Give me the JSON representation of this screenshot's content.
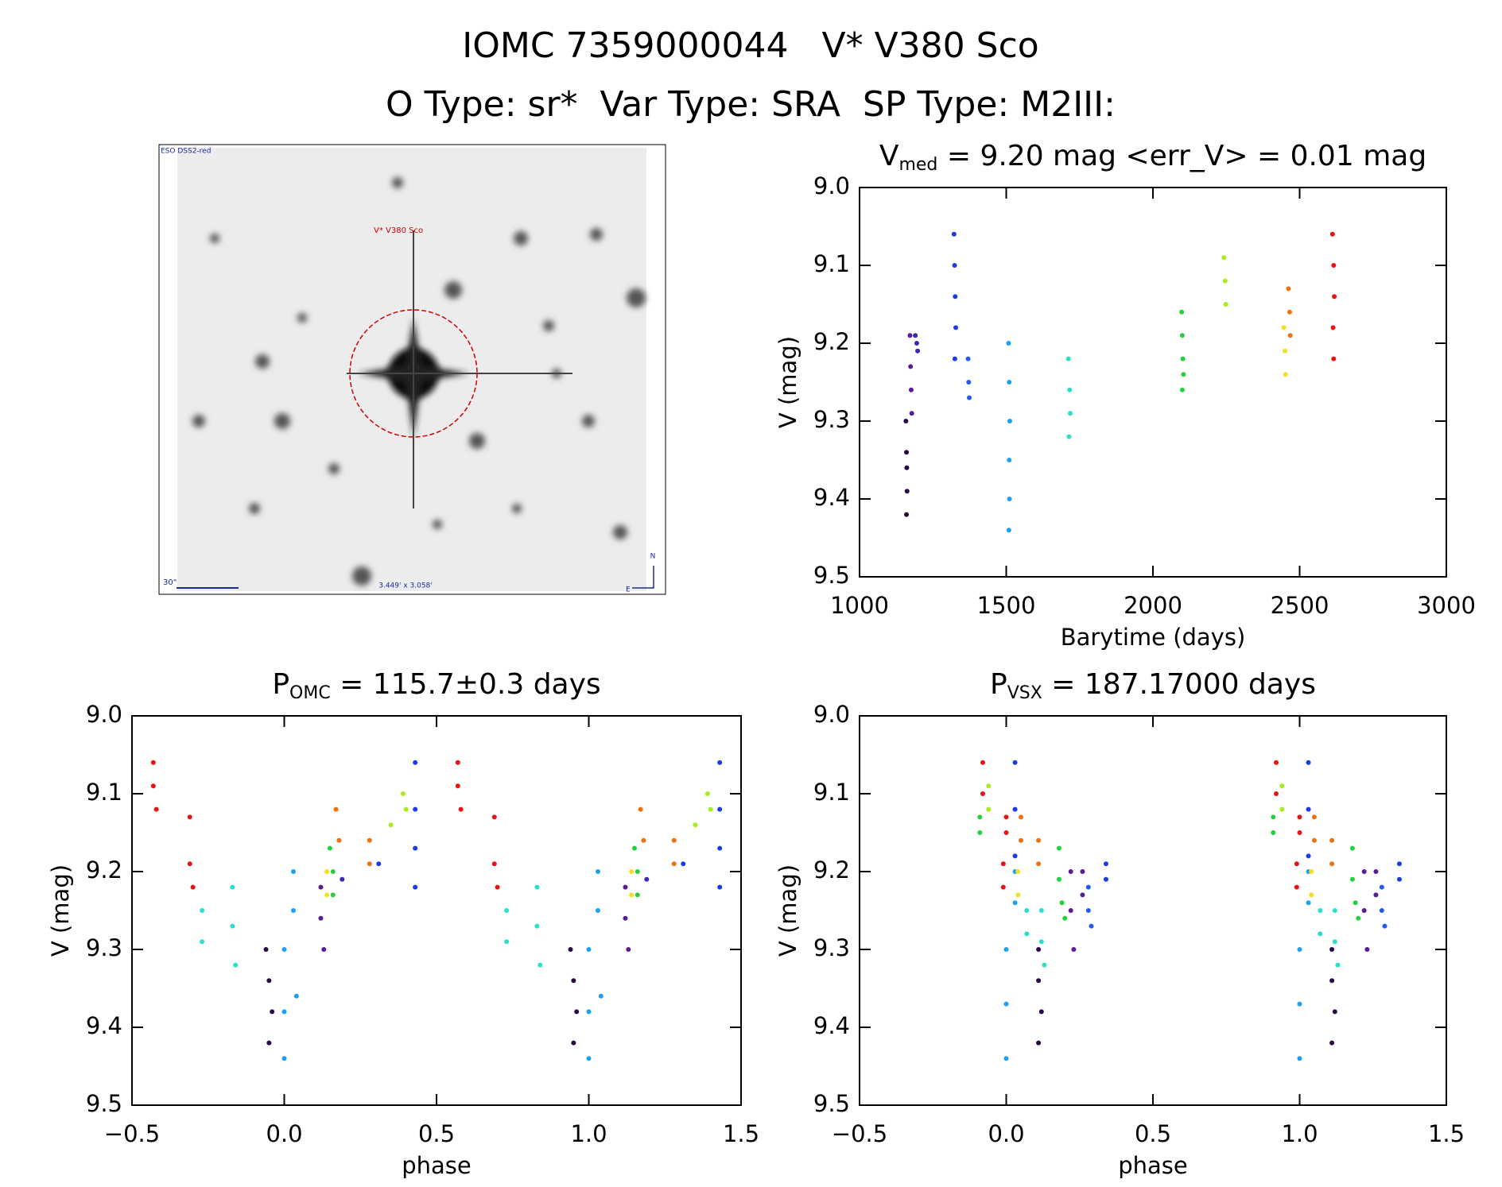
{
  "header": {
    "title": "IOMC 7359000044   V* V380 Sco",
    "subtitle": "O Type: sr*  Var Type: SRA  SP Type: M2III:"
  },
  "image": {
    "survey": "ESO DSS2-red",
    "target": "V* V380 Sco",
    "scale": "30\"",
    "fov": "3.449' x 3.058'",
    "north": "N",
    "east": "E"
  },
  "chart_data": [
    {
      "type": "scatter",
      "title": [
        "V",
        "med",
        " = 9.20 mag <err_V> = 0.01 mag"
      ],
      "xlabel": "Barytime (days)",
      "ylabel": "V (mag)",
      "xlim": [
        1000,
        3000
      ],
      "xticks": [
        1000,
        1500,
        2000,
        2500,
        3000
      ],
      "ylim": [
        9.5,
        9.0
      ],
      "yticks": [
        {
          "value": 9.0,
          "label": "9.0"
        },
        9.1,
        9.2,
        9.3,
        9.4,
        9.5
      ],
      "series": [
        {
          "color": "#2a0845",
          "x": [
            1158,
            1160,
            1161,
            1162,
            1160
          ],
          "values": [
            9.3,
            9.34,
            9.36,
            9.39,
            9.42
          ]
        },
        {
          "color": "#5b1a9a",
          "x": [
            1172,
            1174,
            1176,
            1178
          ],
          "values": [
            9.19,
            9.23,
            9.26,
            9.29
          ]
        },
        {
          "color": "#3c28b4",
          "x": [
            1190,
            1195,
            1198
          ],
          "values": [
            9.19,
            9.2,
            9.21
          ]
        },
        {
          "color": "#1a3ce6",
          "x": [
            1322,
            1324,
            1326,
            1328,
            1325
          ],
          "values": [
            9.06,
            9.1,
            9.14,
            9.18,
            9.22
          ]
        },
        {
          "color": "#2458f0",
          "x": [
            1370,
            1372,
            1374
          ],
          "values": [
            9.22,
            9.25,
            9.27
          ]
        },
        {
          "color": "#1ea0f0",
          "x": [
            1508,
            1510,
            1512,
            1510,
            1511,
            1509
          ],
          "values": [
            9.2,
            9.25,
            9.3,
            9.35,
            9.4,
            9.44
          ]
        },
        {
          "color": "#2ae0c8",
          "x": [
            1712,
            1716,
            1718,
            1714
          ],
          "values": [
            9.22,
            9.26,
            9.29,
            9.32
          ]
        },
        {
          "color": "#22d23c",
          "x": [
            2098,
            2100,
            2102,
            2104,
            2100
          ],
          "values": [
            9.16,
            9.19,
            9.22,
            9.24,
            9.26
          ]
        },
        {
          "color": "#a8ee1c",
          "x": [
            2242,
            2246,
            2248
          ],
          "values": [
            9.09,
            9.12,
            9.15
          ]
        },
        {
          "color": "#f4e01c",
          "x": [
            2446,
            2450,
            2452
          ],
          "values": [
            9.18,
            9.21,
            9.24
          ]
        },
        {
          "color": "#f07014",
          "x": [
            2462,
            2466,
            2468
          ],
          "values": [
            9.13,
            9.16,
            9.19
          ]
        },
        {
          "color": "#e81414",
          "x": [
            2612,
            2616,
            2618,
            2614,
            2616
          ],
          "values": [
            9.06,
            9.1,
            9.14,
            9.18,
            9.22
          ]
        }
      ]
    },
    {
      "type": "scatter",
      "title": [
        "P",
        "OMC",
        " = 115.7±0.3 days"
      ],
      "xlabel": "phase",
      "ylabel": "V (mag)",
      "xlim": [
        -0.5,
        1.5
      ],
      "xticks": [
        {
          "value": -0.5,
          "label": "−0.5"
        },
        {
          "value": 0.0,
          "label": "0.0"
        },
        0.5,
        {
          "value": 1.0,
          "label": "1.0"
        },
        1.5
      ],
      "ylim": [
        9.5,
        9.0
      ],
      "yticks": [
        {
          "value": 9.0,
          "label": "9.0"
        },
        9.1,
        9.2,
        9.3,
        9.4,
        9.5
      ],
      "series": [
        {
          "color": "#e81414",
          "x": [
            -0.43,
            -0.43,
            -0.42,
            -0.31,
            -0.31,
            -0.3,
            0.57,
            0.57,
            0.58,
            0.69,
            0.69,
            0.7
          ],
          "values": [
            9.06,
            9.09,
            9.12,
            9.13,
            9.19,
            9.22,
            9.06,
            9.09,
            9.12,
            9.13,
            9.19,
            9.22
          ]
        },
        {
          "color": "#2ae0c8",
          "x": [
            -0.27,
            -0.27,
            -0.17,
            -0.17,
            -0.16,
            0.73,
            0.73,
            0.83,
            0.83,
            0.84
          ],
          "values": [
            9.25,
            9.29,
            9.22,
            9.27,
            9.32,
            9.25,
            9.29,
            9.22,
            9.27,
            9.32
          ]
        },
        {
          "color": "#2a0845",
          "x": [
            -0.06,
            -0.05,
            -0.04,
            -0.05,
            0.94,
            0.95,
            0.96,
            0.95
          ],
          "values": [
            9.3,
            9.34,
            9.38,
            9.42,
            9.3,
            9.34,
            9.38,
            9.42
          ]
        },
        {
          "color": "#1ea0f0",
          "x": [
            0.0,
            0.0,
            0.0,
            0.03,
            0.03,
            0.04,
            1.0,
            1.0,
            1.0,
            1.03,
            1.03,
            1.04
          ],
          "values": [
            9.3,
            9.38,
            9.44,
            9.2,
            9.25,
            9.36,
            9.3,
            9.38,
            9.44,
            9.2,
            9.25,
            9.36
          ]
        },
        {
          "color": "#5b1a9a",
          "x": [
            0.12,
            0.12,
            0.13,
            1.12,
            1.12,
            1.13
          ],
          "values": [
            9.22,
            9.26,
            9.3,
            9.22,
            9.26,
            9.3
          ]
        },
        {
          "color": "#22d23c",
          "x": [
            0.15,
            0.16,
            0.16,
            1.15,
            1.16,
            1.16
          ],
          "values": [
            9.17,
            9.2,
            9.23,
            9.17,
            9.2,
            9.23
          ]
        },
        {
          "color": "#f4e01c",
          "x": [
            0.14,
            0.14,
            1.14,
            1.14
          ],
          "values": [
            9.2,
            9.23,
            9.2,
            9.23
          ]
        },
        {
          "color": "#f07014",
          "x": [
            0.17,
            0.18,
            0.28,
            0.28,
            1.17,
            1.18,
            1.28,
            1.28
          ],
          "values": [
            9.12,
            9.16,
            9.16,
            9.19,
            9.12,
            9.16,
            9.16,
            9.19
          ]
        },
        {
          "color": "#a8ee1c",
          "x": [
            0.35,
            0.39,
            0.4,
            1.35,
            1.39,
            1.4
          ],
          "values": [
            9.14,
            9.1,
            9.12,
            9.14,
            9.1,
            9.12
          ]
        },
        {
          "color": "#1a3ce6",
          "x": [
            0.31,
            0.43,
            0.43,
            0.43,
            0.43,
            1.31,
            1.43,
            1.43,
            1.43,
            1.43
          ],
          "values": [
            9.19,
            9.06,
            9.12,
            9.17,
            9.22,
            9.19,
            9.06,
            9.12,
            9.17,
            9.22
          ]
        },
        {
          "color": "#3c28b4",
          "x": [
            0.19,
            1.19
          ],
          "values": [
            9.21,
            9.21
          ]
        }
      ]
    },
    {
      "type": "scatter",
      "title": [
        "P",
        "VSX",
        " = 187.17000 days"
      ],
      "xlabel": "phase",
      "ylabel": "V (mag)",
      "xlim": [
        -0.5,
        1.5
      ],
      "xticks": [
        {
          "value": -0.5,
          "label": "−0.5"
        },
        {
          "value": 0.0,
          "label": "0.0"
        },
        0.5,
        {
          "value": 1.0,
          "label": "1.0"
        },
        1.5
      ],
      "ylim": [
        9.5,
        9.0
      ],
      "yticks": [
        {
          "value": 9.0,
          "label": "9.0"
        },
        9.1,
        9.2,
        9.3,
        9.4,
        9.5
      ],
      "series": [
        {
          "color": "#e81414",
          "x": [
            -0.08,
            -0.08,
            0.0,
            0.0,
            -0.01,
            -0.01,
            0.92,
            0.92,
            1.0,
            1.0,
            0.99,
            0.99
          ],
          "values": [
            9.06,
            9.1,
            9.13,
            9.15,
            9.19,
            9.22,
            9.06,
            9.1,
            9.13,
            9.15,
            9.19,
            9.22
          ]
        },
        {
          "color": "#a8ee1c",
          "x": [
            -0.06,
            -0.06,
            0.94,
            0.94
          ],
          "values": [
            9.09,
            9.12,
            9.09,
            9.12
          ]
        },
        {
          "color": "#22d23c",
          "x": [
            -0.09,
            -0.09,
            0.18,
            0.18,
            0.19,
            0.2,
            0.91,
            0.91,
            1.18,
            1.18,
            1.19,
            1.2
          ],
          "values": [
            9.13,
            9.15,
            9.17,
            9.21,
            9.24,
            9.26,
            9.13,
            9.15,
            9.17,
            9.21,
            9.24,
            9.26
          ]
        },
        {
          "color": "#1a3ce6",
          "x": [
            0.03,
            0.03,
            0.03,
            0.34,
            0.34,
            1.03,
            1.03,
            1.03,
            1.34,
            1.34
          ],
          "values": [
            9.06,
            9.12,
            9.18,
            9.19,
            9.21,
            9.06,
            9.12,
            9.18,
            9.19,
            9.21
          ]
        },
        {
          "color": "#1ea0f0",
          "x": [
            0.0,
            0.0,
            0.0,
            0.03,
            0.03,
            1.0,
            1.0,
            1.0,
            1.03,
            1.03
          ],
          "values": [
            9.3,
            9.37,
            9.44,
            9.2,
            9.24,
            9.3,
            9.37,
            9.44,
            9.2,
            9.24
          ]
        },
        {
          "color": "#f4e01c",
          "x": [
            0.04,
            0.04,
            1.04,
            1.04
          ],
          "values": [
            9.2,
            9.23,
            9.2,
            9.23
          ]
        },
        {
          "color": "#f07014",
          "x": [
            0.05,
            0.05,
            0.11,
            0.11,
            1.05,
            1.05,
            1.11,
            1.11
          ],
          "values": [
            9.13,
            9.16,
            9.16,
            9.19,
            9.13,
            9.16,
            9.16,
            9.19
          ]
        },
        {
          "color": "#2ae0c8",
          "x": [
            0.07,
            0.07,
            0.12,
            0.12,
            0.13,
            1.07,
            1.07,
            1.12,
            1.12,
            1.13
          ],
          "values": [
            9.25,
            9.28,
            9.25,
            9.29,
            9.32,
            9.25,
            9.28,
            9.25,
            9.29,
            9.32
          ]
        },
        {
          "color": "#2a0845",
          "x": [
            0.11,
            0.11,
            0.12,
            0.11,
            1.11,
            1.11,
            1.12,
            1.11
          ],
          "values": [
            9.3,
            9.34,
            9.38,
            9.42,
            9.3,
            9.34,
            9.38,
            9.42
          ]
        },
        {
          "color": "#5b1a9a",
          "x": [
            0.22,
            0.22,
            0.23,
            0.26,
            0.26,
            1.22,
            1.22,
            1.23,
            1.26,
            1.26
          ],
          "values": [
            9.2,
            9.25,
            9.3,
            9.2,
            9.23,
            9.2,
            9.25,
            9.3,
            9.2,
            9.23
          ]
        },
        {
          "color": "#2458f0",
          "x": [
            0.28,
            0.28,
            0.29,
            1.28,
            1.28,
            1.29
          ],
          "values": [
            9.22,
            9.25,
            9.27,
            9.22,
            9.25,
            9.27
          ]
        }
      ]
    }
  ]
}
